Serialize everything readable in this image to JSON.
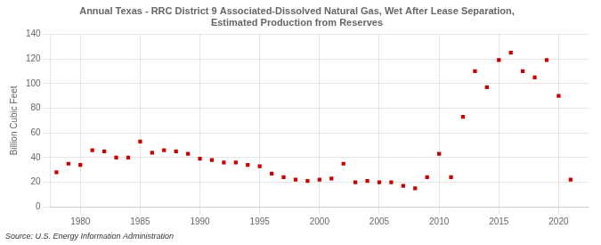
{
  "chart_data": {
    "type": "scatter",
    "title": "Annual Texas - RRC District 9 Associated-Dissolved Natural Gas, Wet After Lease Separation,\nEstimated Production from Reserves",
    "ylabel": "Billion Cubic Feet",
    "source": "Source: U.S. Energy Information Administration",
    "color": "#cc0000",
    "marker": "square",
    "x": [
      1978,
      1979,
      1980,
      1981,
      1982,
      1983,
      1984,
      1985,
      1986,
      1987,
      1988,
      1989,
      1990,
      1991,
      1992,
      1993,
      1994,
      1995,
      1996,
      1997,
      1998,
      1999,
      2000,
      2001,
      2002,
      2003,
      2004,
      2005,
      2006,
      2007,
      2008,
      2009,
      2010,
      2011,
      2012,
      2013,
      2014,
      2015,
      2016,
      2017,
      2018,
      2019,
      2020,
      2021
    ],
    "values": [
      28,
      35,
      34,
      46,
      45,
      40,
      40,
      53,
      44,
      46,
      45,
      43,
      39,
      38,
      36,
      36,
      34,
      33,
      27,
      24,
      22,
      21,
      22,
      23,
      35,
      20,
      21,
      20,
      20,
      17,
      15,
      24,
      43,
      24,
      73,
      110,
      97,
      119,
      125,
      110,
      105,
      119,
      90,
      22
    ],
    "xlim": [
      1977.5,
      2022.5
    ],
    "xticks": [
      1980,
      1985,
      1990,
      1995,
      2000,
      2005,
      2010,
      2015,
      2020
    ],
    "ylim": [
      0,
      140
    ],
    "yticks": [
      0,
      20,
      40,
      60,
      80,
      100,
      120,
      140
    ],
    "grid": true
  }
}
